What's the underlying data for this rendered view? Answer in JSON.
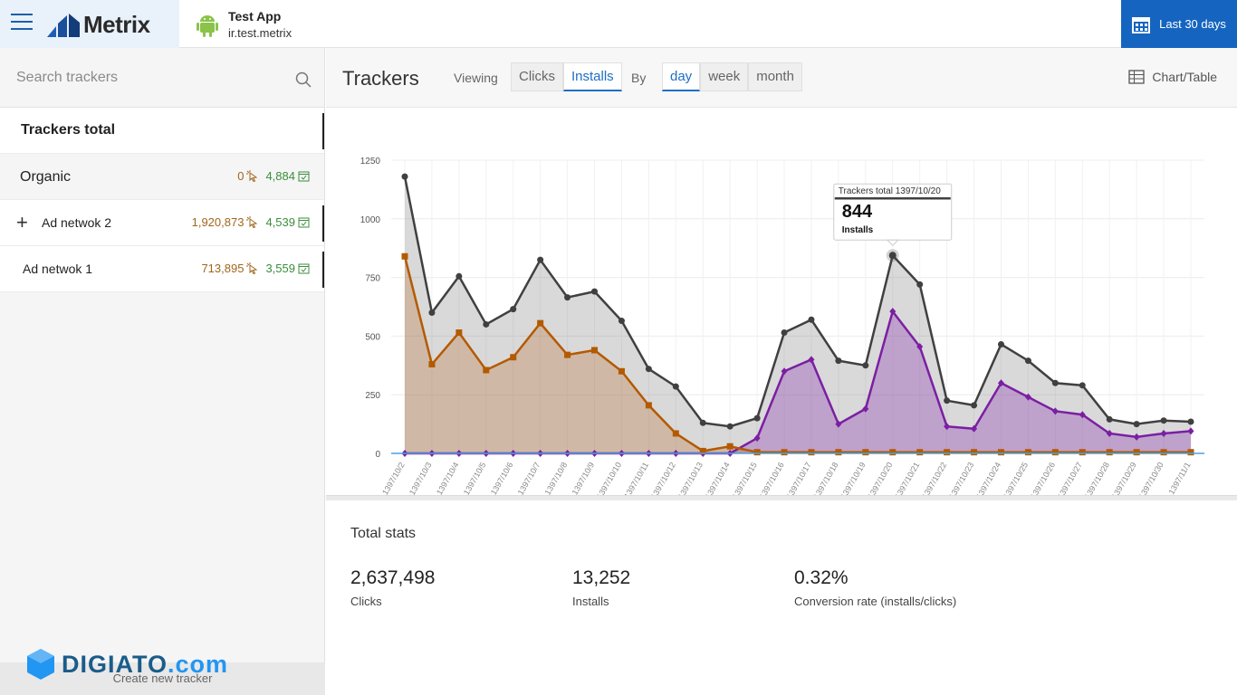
{
  "header": {
    "logo_text": "Metrix",
    "app_name": "Test App",
    "app_id": "ir.test.metrix",
    "date_range": "Last 30 days"
  },
  "sidebar": {
    "search_placeholder": "Search trackers",
    "trackers": [
      {
        "name": "Trackers total"
      },
      {
        "name": "Organic",
        "clicks": "0",
        "installs": "4,884"
      },
      {
        "name": "Ad netwok 2",
        "clicks": "1,920,873",
        "installs": "4,539"
      },
      {
        "name": "Ad netwok 1",
        "clicks": "713,895",
        "installs": "3,559"
      }
    ],
    "create_label": "Create new tracker",
    "watermark": "DIGIATO",
    "watermark_suffix": ".com"
  },
  "toolbar": {
    "title": "Trackers",
    "viewing_label": "Viewing",
    "viewing_options": [
      "Clicks",
      "Installs"
    ],
    "viewing_selected": "Installs",
    "by_label": "By",
    "by_options": [
      "day",
      "week",
      "month"
    ],
    "by_selected": "day",
    "view_toggle": "Chart/Table"
  },
  "tooltip": {
    "header": "Trackers total 1397/10/20",
    "value": "844",
    "metric": "Installs"
  },
  "chart_data": {
    "type": "area",
    "x": [
      "1397/10/2",
      "1397/10/3",
      "1397/10/4",
      "1397/10/5",
      "1397/10/6",
      "1397/10/7",
      "1397/10/8",
      "1397/10/9",
      "1397/10/10",
      "1397/10/11",
      "1397/10/12",
      "1397/10/13",
      "1397/10/14",
      "1397/10/15",
      "1397/10/16",
      "1397/10/17",
      "1397/10/18",
      "1397/10/19",
      "1397/10/20",
      "1397/10/21",
      "1397/10/22",
      "1397/10/23",
      "1397/10/24",
      "1397/10/25",
      "1397/10/26",
      "1397/10/27",
      "1397/10/28",
      "1397/10/29",
      "1397/10/30",
      "1397/11/1"
    ],
    "ylim": [
      0,
      1250
    ],
    "yticks": [
      0,
      250,
      500,
      750,
      1000,
      1250
    ],
    "legend_position": "bottom",
    "grid": true,
    "series": [
      {
        "name": "Trackers total",
        "color": "#404040",
        "marker": "circle",
        "values": [
          1180,
          600,
          755,
          550,
          615,
          825,
          665,
          690,
          565,
          360,
          285,
          130,
          115,
          150,
          515,
          570,
          395,
          375,
          844,
          720,
          225,
          205,
          465,
          395,
          300,
          290,
          145,
          125,
          140,
          135
        ]
      },
      {
        "name": "Ad netwok 1",
        "color": "#7b1fa2",
        "marker": "diamond",
        "values": [
          0,
          0,
          0,
          0,
          0,
          0,
          0,
          0,
          0,
          0,
          0,
          0,
          0,
          65,
          350,
          400,
          125,
          190,
          605,
          455,
          115,
          105,
          300,
          240,
          180,
          165,
          85,
          70,
          85,
          95
        ]
      },
      {
        "name": "Ad netwok 2",
        "color": "#b35a00",
        "marker": "square",
        "values": [
          840,
          380,
          515,
          355,
          410,
          555,
          420,
          440,
          350,
          205,
          85,
          10,
          30,
          5,
          5,
          5,
          5,
          5,
          5,
          5,
          5,
          5,
          5,
          5,
          5,
          5,
          5,
          5,
          5,
          5
        ]
      }
    ]
  },
  "total_stats": {
    "title": "Total stats",
    "items": [
      {
        "value": "2,637,498",
        "label": "Clicks"
      },
      {
        "value": "13,252",
        "label": "Installs"
      },
      {
        "value": "0.32%",
        "label": "Conversion rate (installs/clicks)"
      }
    ]
  }
}
